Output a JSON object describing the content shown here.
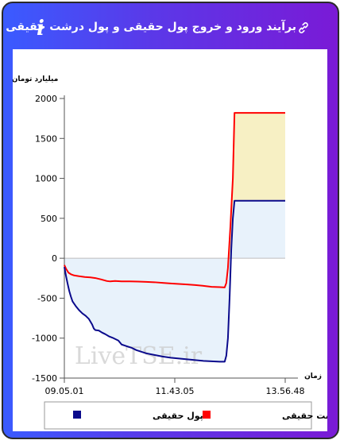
{
  "header": {
    "title": "برآیند ورود و خروج پول حقیقی و پول درشت حقیقی به بازار",
    "info_symbol": "i"
  },
  "watermark": "LiveTSE.ir",
  "chart_data": {
    "type": "area",
    "ylabel": "میلیارد تومان",
    "xlabel": "زمان",
    "ylim": [
      -1500,
      2000
    ],
    "yticks": [
      2000,
      1500,
      1000,
      500,
      0,
      -500,
      -1000,
      -1500
    ],
    "xlim": [
      0,
      270
    ],
    "xticks": [
      {
        "x": 0,
        "label": "09.05.01"
      },
      {
        "x": 135,
        "label": "11.43.05"
      },
      {
        "x": 270,
        "label": "13.56.48"
      }
    ],
    "legend_position": "bottom",
    "series": [
      {
        "name": "پول درشت حقیقی",
        "color": "#ff0000",
        "fill": "#f7f0c4",
        "points": [
          [
            0,
            -85
          ],
          [
            2,
            -130
          ],
          [
            5,
            -180
          ],
          [
            8,
            -200
          ],
          [
            12,
            -215
          ],
          [
            18,
            -225
          ],
          [
            25,
            -235
          ],
          [
            32,
            -240
          ],
          [
            38,
            -248
          ],
          [
            45,
            -265
          ],
          [
            52,
            -285
          ],
          [
            56,
            -290
          ],
          [
            62,
            -285
          ],
          [
            70,
            -290
          ],
          [
            80,
            -290
          ],
          [
            90,
            -292
          ],
          [
            100,
            -296
          ],
          [
            110,
            -300
          ],
          [
            120,
            -308
          ],
          [
            130,
            -315
          ],
          [
            140,
            -322
          ],
          [
            150,
            -328
          ],
          [
            160,
            -335
          ],
          [
            170,
            -345
          ],
          [
            180,
            -358
          ],
          [
            190,
            -362
          ],
          [
            196,
            -365
          ],
          [
            198,
            -310
          ],
          [
            200,
            -120
          ],
          [
            203,
            400
          ],
          [
            206,
            1000
          ],
          [
            208,
            1820
          ],
          [
            270,
            1820
          ]
        ]
      },
      {
        "name": "پول حقیقی",
        "color": "#0a0a8c",
        "fill": "#e8f2fb",
        "points": [
          [
            0,
            -110
          ],
          [
            2,
            -220
          ],
          [
            4,
            -320
          ],
          [
            6,
            -410
          ],
          [
            8,
            -480
          ],
          [
            10,
            -540
          ],
          [
            14,
            -600
          ],
          [
            18,
            -650
          ],
          [
            22,
            -690
          ],
          [
            26,
            -720
          ],
          [
            30,
            -760
          ],
          [
            34,
            -830
          ],
          [
            36,
            -880
          ],
          [
            38,
            -900
          ],
          [
            42,
            -905
          ],
          [
            46,
            -930
          ],
          [
            50,
            -950
          ],
          [
            55,
            -980
          ],
          [
            60,
            -1000
          ],
          [
            66,
            -1030
          ],
          [
            70,
            -1080
          ],
          [
            76,
            -1100
          ],
          [
            82,
            -1120
          ],
          [
            88,
            -1150
          ],
          [
            94,
            -1170
          ],
          [
            100,
            -1190
          ],
          [
            110,
            -1210
          ],
          [
            120,
            -1230
          ],
          [
            130,
            -1245
          ],
          [
            140,
            -1255
          ],
          [
            150,
            -1265
          ],
          [
            160,
            -1275
          ],
          [
            170,
            -1285
          ],
          [
            180,
            -1290
          ],
          [
            190,
            -1295
          ],
          [
            196,
            -1295
          ],
          [
            198,
            -1220
          ],
          [
            200,
            -1000
          ],
          [
            202,
            -500
          ],
          [
            204,
            100
          ],
          [
            206,
            500
          ],
          [
            208,
            720
          ],
          [
            270,
            720
          ]
        ]
      }
    ]
  }
}
